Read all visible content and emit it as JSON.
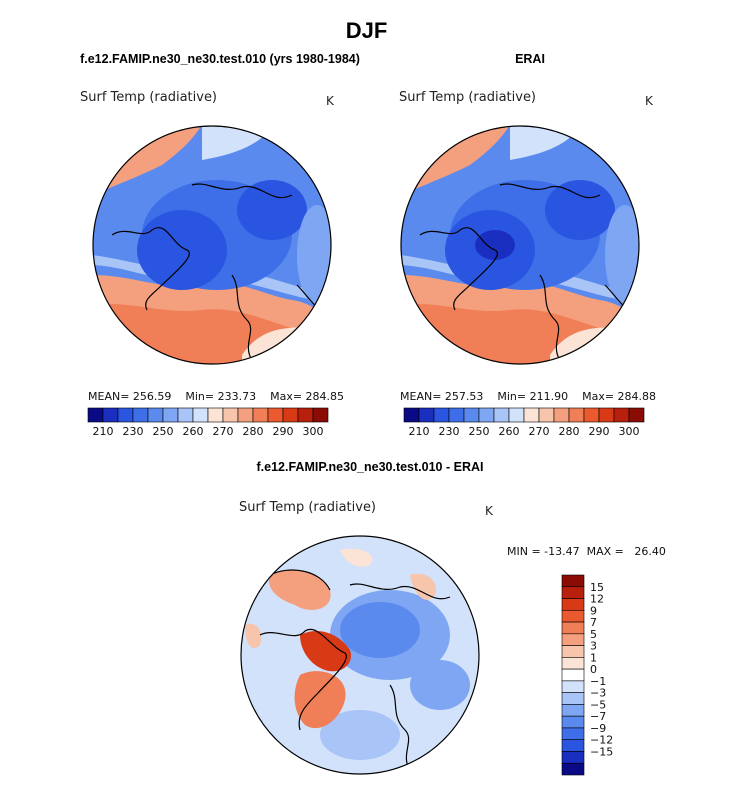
{
  "page": {
    "title": "DJF"
  },
  "panels": [
    {
      "id": "model",
      "title": "f.e12.FAMIP.ne30_ne30.test.010 (yrs 1980-1984)",
      "variable": "Surf Temp (radiative)",
      "units": "K",
      "stats": "MEAN= 256.59    Min= 233.73    Max= 284.85"
    },
    {
      "id": "obs",
      "title": "ERAI",
      "variable": "Surf Temp (radiative)",
      "units": "K",
      "stats": "MEAN= 257.53    Min= 211.90    Max= 284.88"
    },
    {
      "id": "diff",
      "title": "f.e12.FAMIP.ne30_ne30.test.010 - ERAI",
      "variable": "Surf Temp (radiative)",
      "units": "K",
      "stats": "MIN = -13.47  MAX =   26.40"
    }
  ],
  "chart_data": [
    {
      "type": "heatmap",
      "projection": "north polar stereographic",
      "title": "f.e12.FAMIP.ne30_ne30.test.010 (yrs 1980-1984)",
      "variable": "Surf Temp (radiative)",
      "units": "K",
      "mean": 256.59,
      "min": 233.73,
      "max": 284.85,
      "colorbar_levels": [
        210,
        220,
        230,
        240,
        250,
        255,
        260,
        265,
        270,
        275,
        280,
        285,
        290,
        295,
        300
      ],
      "colorbar_tick_labels": [
        "210",
        "230",
        "250",
        "260",
        "270",
        "280",
        "290",
        "300"
      ],
      "colorbar_colors": [
        "#0b0a86",
        "#1a2fc0",
        "#2a55e0",
        "#3e6fe8",
        "#5a8aee",
        "#7fa6f2",
        "#a9c4f6",
        "#d3e2fb",
        "#fbe3d6",
        "#f7c4ac",
        "#f4a07e",
        "#f07e56",
        "#ea5a2e",
        "#d83a16",
        "#b81f0c",
        "#8a0c05"
      ]
    },
    {
      "type": "heatmap",
      "projection": "north polar stereographic",
      "title": "ERAI",
      "variable": "Surf Temp (radiative)",
      "units": "K",
      "mean": 257.53,
      "min": 211.9,
      "max": 284.88,
      "colorbar_levels": [
        210,
        220,
        230,
        240,
        250,
        255,
        260,
        265,
        270,
        275,
        280,
        285,
        290,
        295,
        300
      ],
      "colorbar_tick_labels": [
        "210",
        "230",
        "250",
        "260",
        "270",
        "280",
        "290",
        "300"
      ],
      "colorbar_colors": [
        "#0b0a86",
        "#1a2fc0",
        "#2a55e0",
        "#3e6fe8",
        "#5a8aee",
        "#7fa6f2",
        "#a9c4f6",
        "#d3e2fb",
        "#fbe3d6",
        "#f7c4ac",
        "#f4a07e",
        "#f07e56",
        "#ea5a2e",
        "#d83a16",
        "#b81f0c",
        "#8a0c05"
      ]
    },
    {
      "type": "heatmap",
      "projection": "north polar stereographic",
      "title": "f.e12.FAMIP.ne30_ne30.test.010 - ERAI",
      "variable": "Surf Temp (radiative)",
      "units": "K",
      "min": -13.47,
      "max": 26.4,
      "colorbar_orientation": "vertical",
      "colorbar_tick_labels": [
        "15",
        "12",
        "9",
        "7",
        "5",
        "3",
        "1",
        "0",
        "−1",
        "−3",
        "−5",
        "−7",
        "−9",
        "−12",
        "−15"
      ],
      "colorbar_colors": [
        "#8a0c05",
        "#b81f0c",
        "#d83a16",
        "#ea5a2e",
        "#f07e56",
        "#f4a07e",
        "#f7c4ac",
        "#fbe3d6",
        "#ffffff",
        "#d3e2fb",
        "#a9c4f6",
        "#7fa6f2",
        "#5a8aee",
        "#3e6fe8",
        "#2a55e0",
        "#1a2fc0",
        "#0b0a86"
      ]
    }
  ]
}
